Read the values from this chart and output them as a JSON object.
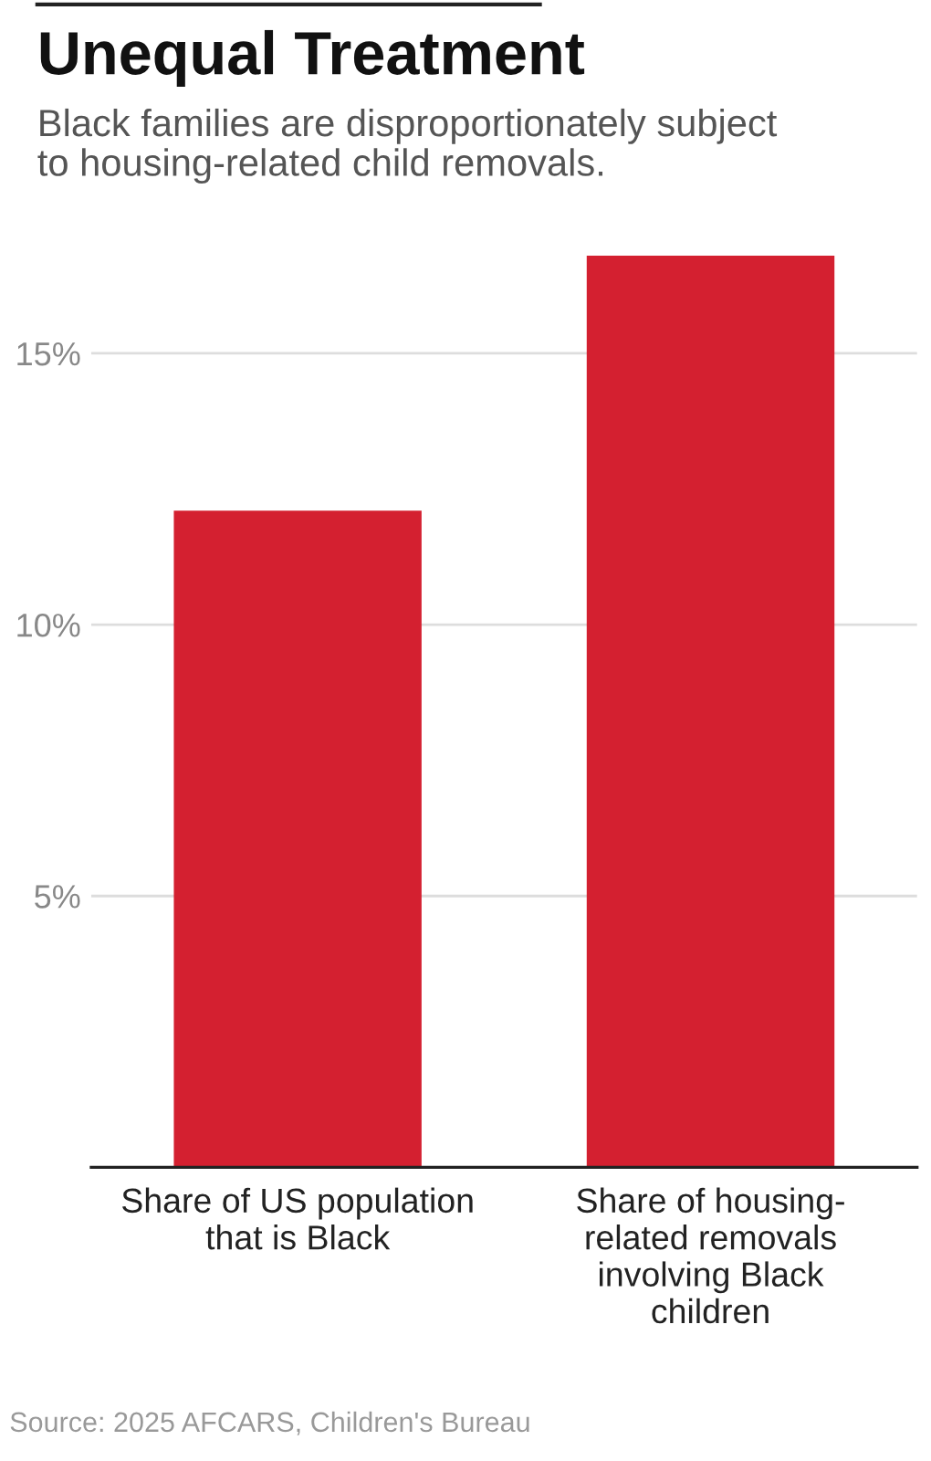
{
  "chart_data": {
    "type": "bar",
    "title": "Unequal Treatment",
    "subtitle": "Black families are disproportionately subject\nto housing-related child removals.",
    "categories": [
      "Share of US population\nthat is Black",
      "Share of housing-\nrelated removals\ninvolving Black\nchildren"
    ],
    "values": [
      12.1,
      16.8
    ],
    "color": "#d42030",
    "ylim": [
      0,
      16.8
    ],
    "yticks": [
      {
        "value": 5,
        "label": "5%"
      },
      {
        "value": 10,
        "label": "10%"
      },
      {
        "value": 15,
        "label": "15%"
      }
    ],
    "grid": "y",
    "annotations": [
      "Source: 2025 AFCARS, Children's Bureau"
    ]
  }
}
